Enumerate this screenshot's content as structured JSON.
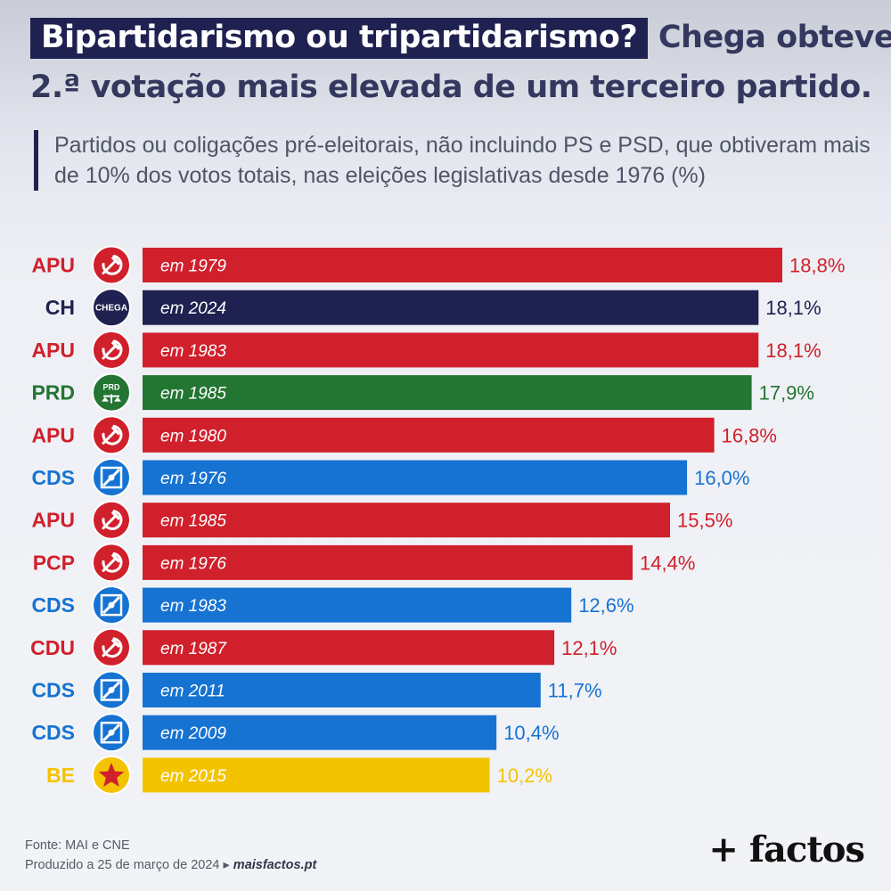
{
  "title": {
    "highlight": "Bipartidarismo ou tripartidarismo?",
    "rest_line1": "Chega obteve",
    "rest_line2": "2.ª votação mais elevada de um terceiro partido."
  },
  "subtitle": "Partidos ou coligações pré-eleitorais, não incluindo PS e PSD, que obtiveram mais de 10% dos votos totais, nas eleições legislativas desde 1976 (%)",
  "colors": {
    "APU": "#d0202c",
    "PCP": "#d0202c",
    "CDU": "#d0202c",
    "CH": "#1f2150",
    "PRD": "#237532",
    "CDS": "#1673d2",
    "BE": "#f4c300"
  },
  "chart_data": {
    "type": "bar",
    "orientation": "horizontal",
    "xlim": [
      0,
      18.8
    ],
    "grid": false,
    "rows": [
      {
        "party": "APU",
        "year": "em 1979",
        "value": 18.8,
        "label": "18,8%",
        "icon": "hammer-sickle-icon"
      },
      {
        "party": "CH",
        "year": "em 2024",
        "value": 18.1,
        "label": "18,1%",
        "icon": "chega-logo-icon",
        "icon_text": "CHEGA"
      },
      {
        "party": "APU",
        "year": "em 1983",
        "value": 18.1,
        "label": "18,1%",
        "icon": "hammer-sickle-icon"
      },
      {
        "party": "PRD",
        "year": "em 1985",
        "value": 17.9,
        "label": "17,9%",
        "icon": "prd-logo-icon",
        "icon_text": "PRD"
      },
      {
        "party": "APU",
        "year": "em 1980",
        "value": 16.8,
        "label": "16,8%",
        "icon": "hammer-sickle-icon"
      },
      {
        "party": "CDS",
        "year": "em 1976",
        "value": 16.0,
        "label": "16,0%",
        "icon": "cds-logo-icon"
      },
      {
        "party": "APU",
        "year": "em 1985",
        "value": 15.5,
        "label": "15,5%",
        "icon": "hammer-sickle-icon"
      },
      {
        "party": "PCP",
        "year": "em 1976",
        "value": 14.4,
        "label": "14,4%",
        "icon": "hammer-sickle-icon"
      },
      {
        "party": "CDS",
        "year": "em 1983",
        "value": 12.6,
        "label": "12,6%",
        "icon": "cds-logo-icon"
      },
      {
        "party": "CDU",
        "year": "em 1987",
        "value": 12.1,
        "label": "12,1%",
        "icon": "hammer-sickle-icon"
      },
      {
        "party": "CDS",
        "year": "em 2011",
        "value": 11.7,
        "label": "11,7%",
        "icon": "cds-logo-icon"
      },
      {
        "party": "CDS",
        "year": "em 2009",
        "value": 10.4,
        "label": "10,4%",
        "icon": "cds-logo-icon"
      },
      {
        "party": "BE",
        "year": "em 2015",
        "value": 10.2,
        "label": "10,2%",
        "icon": "star-icon"
      }
    ]
  },
  "footer": {
    "source": "Fonte: MAI e CNE",
    "produced": "Produzido a 25 de março de 2024 ▸",
    "url": "maisfactos.pt",
    "logo": "+ factos"
  }
}
